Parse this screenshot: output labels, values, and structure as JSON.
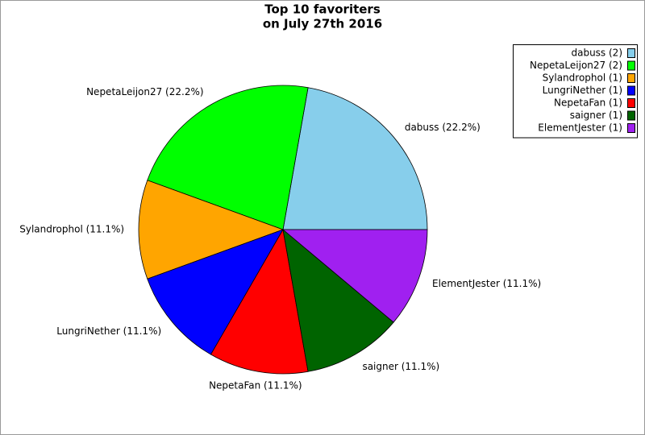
{
  "chart_data": {
    "type": "pie",
    "title": "Top 10 favoriters",
    "subtitle": "on July 27th 2016",
    "categories": [
      "dabuss (2)",
      "NepetaLeijon27 (2)",
      "Sylandrophol (1)",
      "LungriNether (1)",
      "NepetaFan (1)",
      "saigner (1)",
      "ElementJester (1)"
    ],
    "values": [
      2,
      2,
      1,
      1,
      1,
      1,
      1
    ],
    "value_labels": [
      "dabuss (22.2%)",
      "NepetaLeijon27 (22.2%)",
      "Sylandrophol (11.1%)",
      "LungriNether (11.1%)",
      "NepetaFan (11.1%)",
      "saigner (11.1%)",
      "ElementJester (11.1%)"
    ],
    "colors": [
      "#87ceeb",
      "#00ff00",
      "#ffa500",
      "#0000ff",
      "#ff0000",
      "#006400",
      "#a020f0"
    ],
    "legend": "upper right"
  }
}
